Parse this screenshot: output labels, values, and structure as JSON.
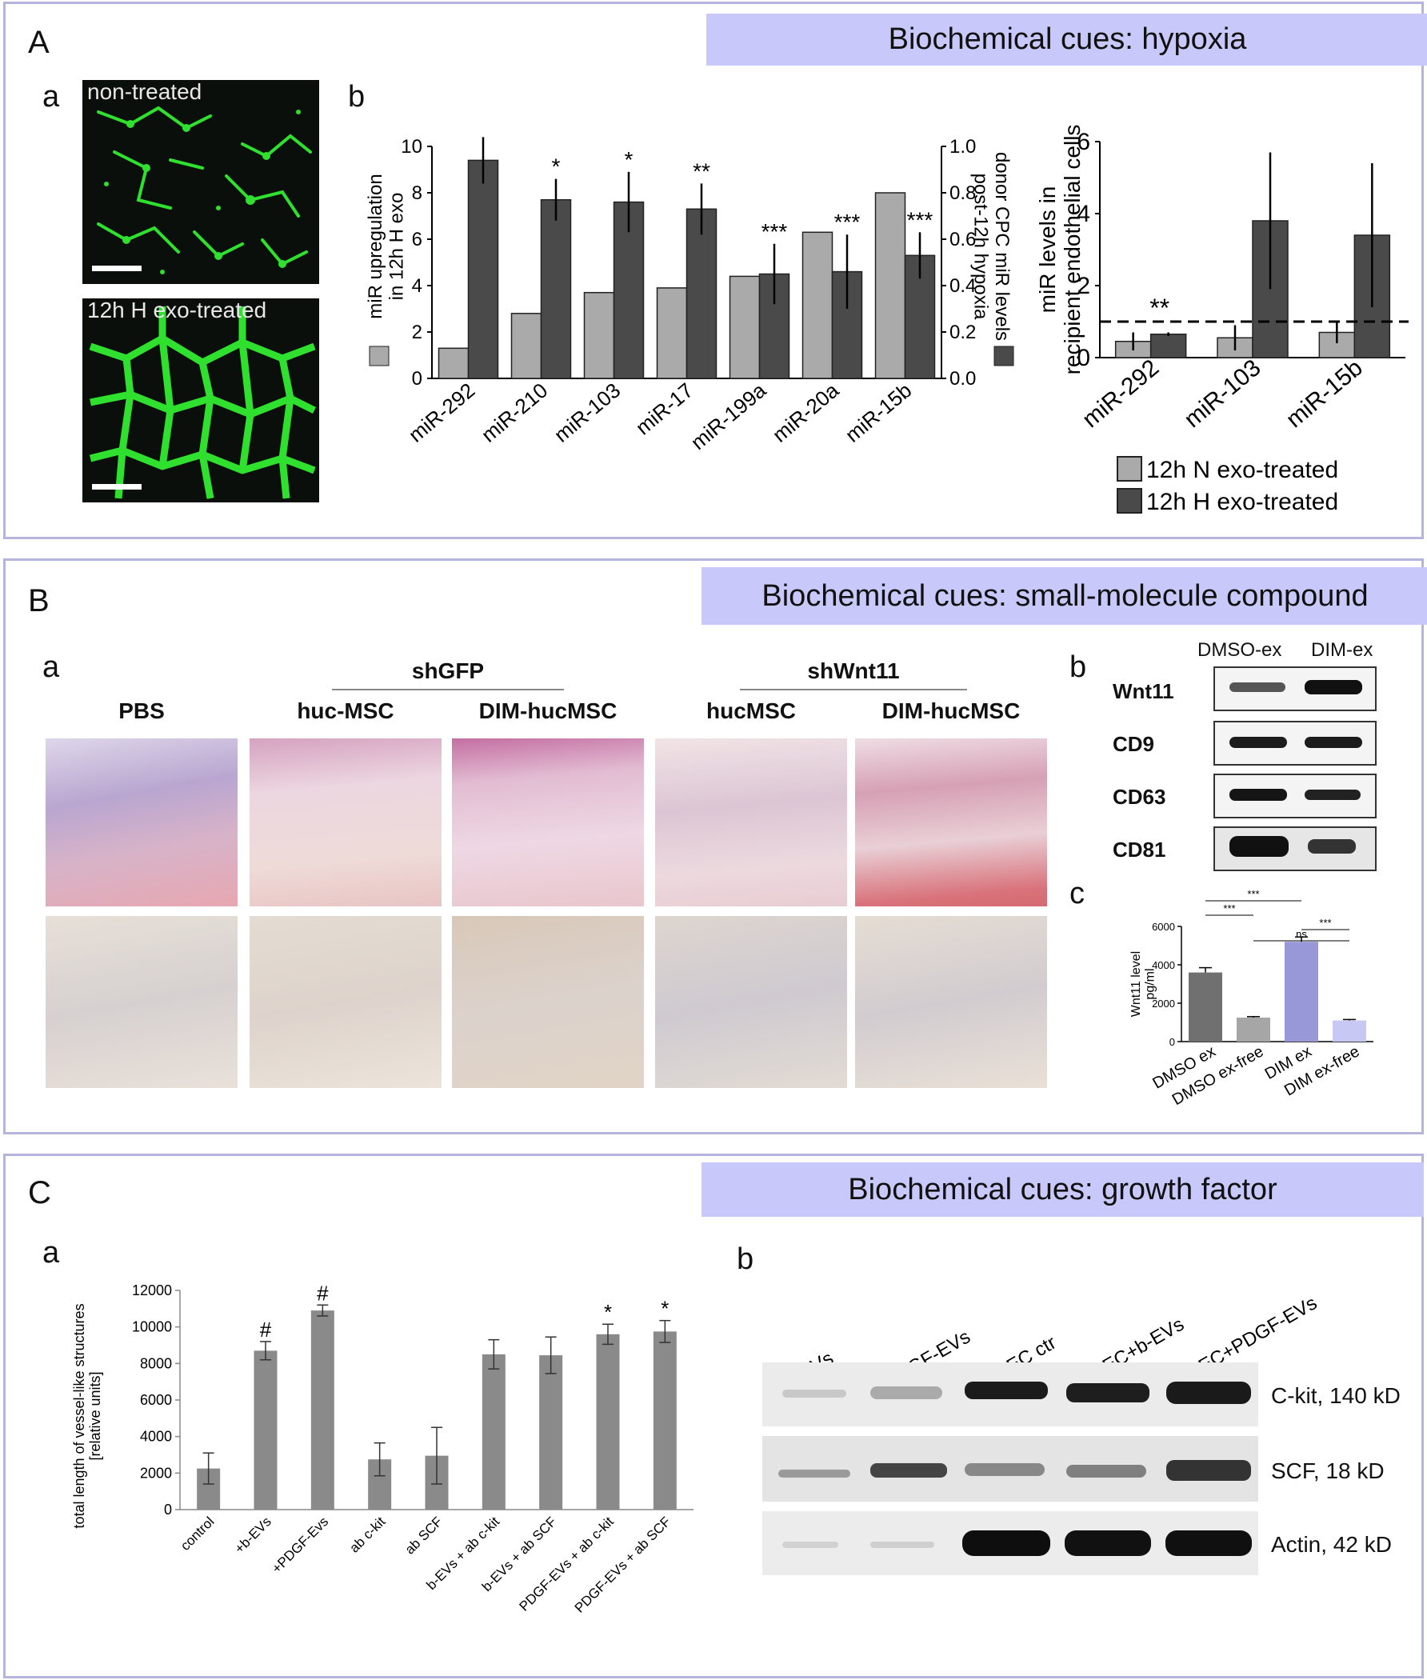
{
  "panelA": {
    "letter": "A",
    "header": "Biochemical cues: hypoxia",
    "sub_a": "a",
    "sub_b": "b",
    "img_top_label": "non-treated",
    "img_bottom_label": "12h H exo-treated"
  },
  "panelB": {
    "letter": "B",
    "header": "Biochemical cues: small-molecule compound",
    "sub_a": "a",
    "sub_b": "b",
    "sub_c": "c",
    "group_shGFP": "shGFP",
    "group_shWnt11": "shWnt11",
    "columns": [
      "PBS",
      "huc-MSC",
      "DIM-hucMSC",
      "hucMSC",
      "DIM-hucMSC"
    ],
    "blot_lanes": [
      "DMSO-ex",
      "DIM-ex"
    ],
    "blot_rows": [
      "Wnt11",
      "CD9",
      "CD63",
      "CD81"
    ]
  },
  "panelC": {
    "letter": "C",
    "header": "Biochemical cues: growth factor",
    "sub_a": "a",
    "sub_b": "b",
    "blot_lanes": [
      "b-EVs",
      "PDGF-EVs",
      "HMEC ctr",
      "HMEC+b-EVs",
      "HMEC+PDGF-EVs"
    ],
    "blot_rows": [
      "C-kit, 140 kD",
      "SCF, 18 kD",
      "Actin, 42 kD"
    ]
  },
  "chart_data": [
    {
      "id": "A-b-left",
      "type": "bar",
      "categories": [
        "miR-292",
        "miR-210",
        "miR-103",
        "miR-17",
        "miR-199a",
        "miR-20a",
        "miR-15b"
      ],
      "series": [
        {
          "values": [
            1.3,
            2.8,
            3.7,
            3.9,
            4.4,
            6.3,
            8.0
          ],
          "color": "#aaaaaa",
          "axis": "left"
        },
        {
          "values": [
            0.94,
            0.77,
            0.76,
            0.73,
            0.45,
            0.46,
            0.53
          ],
          "errors": [
            0.1,
            0.09,
            0.13,
            0.11,
            0.13,
            0.16,
            0.1
          ],
          "color": "#4a4a4a",
          "axis": "right"
        }
      ],
      "significance": [
        "",
        "*",
        "*",
        "**",
        "***",
        "***",
        "***"
      ],
      "ylabel": "miR upregulation\nin 12h H exo",
      "y2label": "donor CPC miR levels\npost-12h hypoxia",
      "ylim": [
        0,
        10
      ],
      "y2lim": [
        0,
        1.0
      ],
      "yticks": [
        "0",
        "2",
        "4",
        "6",
        "8",
        "10"
      ],
      "y2ticks": [
        "0.0",
        "0.2",
        "0.4",
        "0.6",
        "0.8",
        "1.0"
      ]
    },
    {
      "id": "A-b-right",
      "type": "bar",
      "categories": [
        "miR-292",
        "miR-103",
        "miR-15b"
      ],
      "series": [
        {
          "name": "12h N exo-treated",
          "values": [
            0.45,
            0.55,
            0.7
          ],
          "errors": [
            0.25,
            0.35,
            0.3
          ],
          "color": "#aaaaaa"
        },
        {
          "name": "12h H exo-treated",
          "values": [
            0.65,
            3.8,
            3.4
          ],
          "errors": [
            0.05,
            1.9,
            2.0
          ],
          "color": "#4a4a4a"
        }
      ],
      "significance": [
        "**",
        "",
        ""
      ],
      "reference_line": 1,
      "ylabel": "miR levels in\nrecipient endothelial cells",
      "ylim": [
        0,
        6
      ],
      "yticks": [
        "0",
        "2",
        "4",
        "6"
      ]
    },
    {
      "id": "B-c",
      "type": "bar",
      "categories": [
        "DMSO ex",
        "DMSO ex-free",
        "DIM ex",
        "DIM ex-free"
      ],
      "values": [
        3600,
        1250,
        5200,
        1100
      ],
      "errors": [
        250,
        50,
        250,
        50
      ],
      "colors": [
        "#707070",
        "#a6a6a6",
        "#9898d8",
        "#c8c8f4"
      ],
      "ylabel": "Wnt11 level\npg/ml",
      "ylim": [
        0,
        6000
      ],
      "yticks": [
        "0",
        "2000",
        "4000",
        "6000"
      ],
      "comparisons": [
        {
          "from": 0,
          "to": 1,
          "label": "***"
        },
        {
          "from": 0,
          "to": 2,
          "label": "***"
        },
        {
          "from": 1,
          "to": 3,
          "label": "ns"
        },
        {
          "from": 2,
          "to": 3,
          "label": "***"
        }
      ]
    },
    {
      "id": "C-a",
      "type": "bar",
      "categories": [
        "control",
        "+b-EVs",
        "+PDGF-Evs",
        "ab c-kit",
        "ab SCF",
        "b-EVs + ab c-kit",
        "b-EVs + ab SCF",
        "PDGF-EVs + ab c-kit",
        "PDGF-EVs + ab SCF"
      ],
      "values": [
        2250,
        8700,
        10900,
        2750,
        2950,
        8500,
        8450,
        9600,
        9750
      ],
      "errors": [
        850,
        500,
        300,
        900,
        1550,
        800,
        1000,
        550,
        600
      ],
      "markers": [
        "",
        "#",
        "#",
        "",
        "",
        "",
        "",
        "*",
        "*"
      ],
      "color": "#8a8a8a",
      "ylabel": "total length of vessel-like structures\n[relative units]",
      "ylim": [
        0,
        12000
      ],
      "yticks": [
        "0",
        "2000",
        "4000",
        "6000",
        "8000",
        "10000",
        "12000"
      ]
    }
  ]
}
